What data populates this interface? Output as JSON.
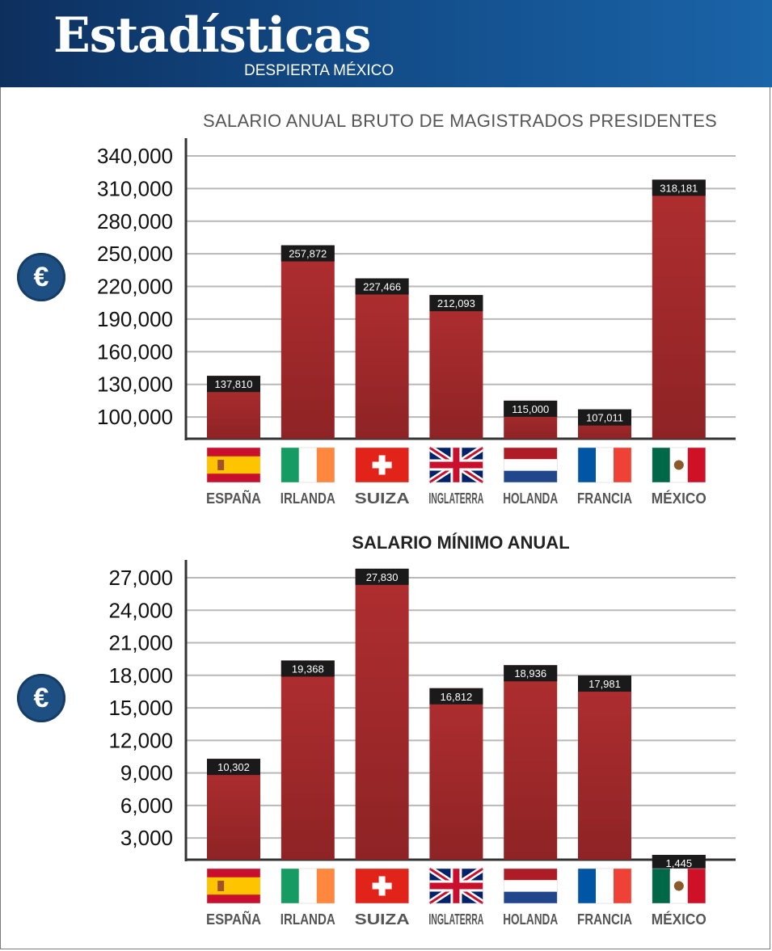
{
  "header": {
    "title": "Estadísticas",
    "subtitle": "DESPIERTA MÉXICO"
  },
  "icons": {
    "currency": "€"
  },
  "colors": {
    "header_start": "#0d2f5e",
    "header_end": "#1a64a8",
    "bar": "#a42a2c",
    "bar_label_bg": "#1a1a1a",
    "grid": "#b8b8b8",
    "euro_badge": "#1e4f82"
  },
  "chart_data": [
    {
      "type": "bar",
      "title": "SALARIO ANUAL BRUTO DE MAGISTRADOS PRESIDENTES",
      "categories": [
        "ESPAÑA",
        "IRLANDA",
        "SUIZA",
        "INGLATERRA",
        "HOLANDA",
        "FRANCIA",
        "MÉXICO"
      ],
      "values": [
        137810,
        257872,
        227466,
        212093,
        115000,
        107011,
        318181
      ],
      "value_labels": [
        "137,810",
        "257,872",
        "227,466",
        "212,093",
        "115,000",
        "107,011",
        "318,181"
      ],
      "yticks": [
        "100,000",
        "130,000",
        "160,000",
        "190,000",
        "220,000",
        "250,000",
        "280,000",
        "310,000",
        "340,000"
      ],
      "ylim": [
        80000,
        340000
      ],
      "grid": true,
      "unit": "€",
      "flags": [
        "spain-flag-icon",
        "ireland-flag-icon",
        "switzerland-flag-icon",
        "uk-flag-icon",
        "netherlands-flag-icon",
        "france-flag-icon",
        "mexico-flag-icon"
      ]
    },
    {
      "type": "bar",
      "title": "SALARIO MÍNIMO ANUAL",
      "categories": [
        "ESPAÑA",
        "IRLANDA",
        "SUIZA",
        "INGLATERRA",
        "HOLANDA",
        "FRANCIA",
        "MÉXICO"
      ],
      "values": [
        10302,
        19368,
        27830,
        16812,
        18936,
        17981,
        1445
      ],
      "value_labels": [
        "10,302",
        "19,368",
        "27,830",
        "16,812",
        "18,936",
        "17,981",
        "1,445"
      ],
      "yticks": [
        "3,000",
        "6,000",
        "9,000",
        "12,000",
        "15,000",
        "18,000",
        "21,000",
        "24,000",
        "27,000"
      ],
      "ylim": [
        1000,
        27000
      ],
      "grid": true,
      "unit": "€",
      "flags": [
        "spain-flag-icon",
        "ireland-flag-icon",
        "switzerland-flag-icon",
        "uk-flag-icon",
        "netherlands-flag-icon",
        "france-flag-icon",
        "mexico-flag-icon"
      ]
    }
  ]
}
